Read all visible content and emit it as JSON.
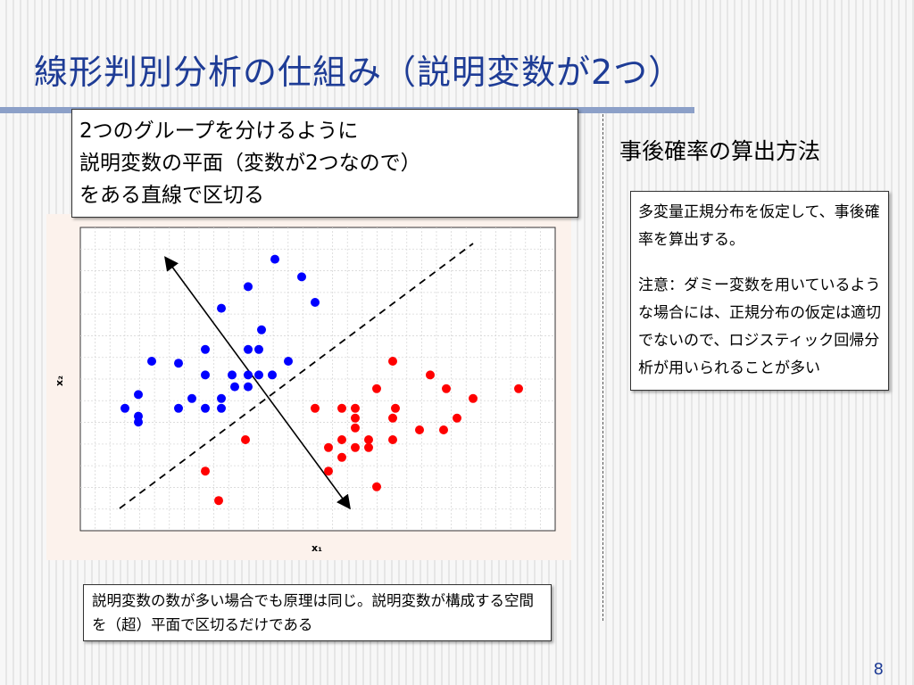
{
  "slide": {
    "title": "線形判別分析の仕組み（説明変数が2つ）",
    "callout_lines": [
      "2つのグループを分けるように",
      "説明変数の平面（変数が2つなので）",
      "をある直線で区切る"
    ],
    "side_heading": "事後確率の算出方法",
    "side_note_paragraphs": [
      "多変量正規分布を仮定して、事後確率を算出する。",
      "注意：ダミー変数を用いているような場合には、正規分布の仮定は適切でないので、ロジスティック回帰分析が用いられることが多い"
    ],
    "bottom_note": "説明変数の数が多い場合でも原理は同じ。説明変数が構成する空間を（超）平面で区切るだけである",
    "page_number": "8"
  },
  "chart_data": {
    "type": "scatter",
    "xlabel": "x1",
    "ylabel": "x2",
    "xlim": [
      0,
      16
    ],
    "ylim": [
      0,
      14
    ],
    "grid": true,
    "series": [
      {
        "color": "#0000ff",
        "points": [
          [
            5.6,
            13.2
          ],
          [
            4.6,
            11.8
          ],
          [
            6.6,
            12.3
          ],
          [
            3.6,
            10.7
          ],
          [
            7.1,
            11.0
          ],
          [
            5.1,
            9.6
          ],
          [
            3.0,
            8.6
          ],
          [
            4.6,
            8.6
          ],
          [
            5.0,
            8.6
          ],
          [
            6.1,
            8.0
          ],
          [
            1.0,
            8.0
          ],
          [
            2.0,
            7.9
          ],
          [
            3.0,
            7.3
          ],
          [
            4.0,
            7.3
          ],
          [
            5.0,
            7.3
          ],
          [
            4.6,
            7.3
          ],
          [
            4.1,
            6.7
          ],
          [
            4.6,
            6.7
          ],
          [
            5.5,
            7.3
          ],
          [
            0.5,
            6.3
          ],
          [
            2.5,
            6.1
          ],
          [
            3.6,
            6.1
          ],
          [
            0.0,
            5.6
          ],
          [
            2.0,
            5.6
          ],
          [
            3.0,
            5.6
          ],
          [
            3.6,
            5.6
          ],
          [
            0.5,
            4.9
          ],
          [
            0.5,
            5.2
          ]
        ]
      },
      {
        "color": "#ff0000",
        "points": [
          [
            10.0,
            8.0
          ],
          [
            11.4,
            7.3
          ],
          [
            9.4,
            6.6
          ],
          [
            12.0,
            6.6
          ],
          [
            14.7,
            6.6
          ],
          [
            13.0,
            6.1
          ],
          [
            7.1,
            5.6
          ],
          [
            8.1,
            5.6
          ],
          [
            8.6,
            5.6
          ],
          [
            10.1,
            5.6
          ],
          [
            8.6,
            5.1
          ],
          [
            10.0,
            5.1
          ],
          [
            12.4,
            5.1
          ],
          [
            8.6,
            4.6
          ],
          [
            11.0,
            4.5
          ],
          [
            11.9,
            4.5
          ],
          [
            4.5,
            4.0
          ],
          [
            8.1,
            4.0
          ],
          [
            9.1,
            4.0
          ],
          [
            10.0,
            4.0
          ],
          [
            7.6,
            3.6
          ],
          [
            8.6,
            3.6
          ],
          [
            9.1,
            3.6
          ],
          [
            8.1,
            3.1
          ],
          [
            3.0,
            2.4
          ],
          [
            7.6,
            2.4
          ],
          [
            9.4,
            1.6
          ],
          [
            3.5,
            0.9
          ]
        ]
      }
    ],
    "dashed_line": [
      [
        -0.2,
        0.5
      ],
      [
        13.0,
        14.0
      ]
    ],
    "arrow_line": [
      [
        1.5,
        13.3
      ],
      [
        8.4,
        0.5
      ]
    ]
  }
}
